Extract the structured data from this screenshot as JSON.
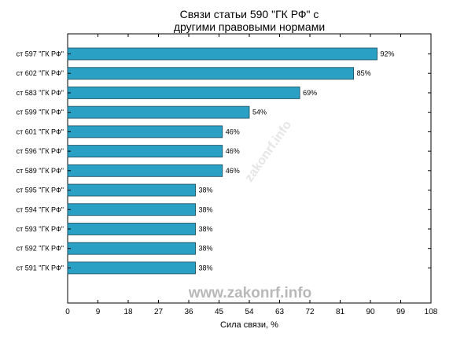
{
  "chart_data": {
    "type": "bar",
    "orientation": "horizontal",
    "title": [
      "Связи статьи 590 \"ГК РФ\" с",
      "другими правовыми нормами"
    ],
    "xlabel": "Сила связи, %",
    "ylabel": "",
    "xlim": [
      0,
      108
    ],
    "xticks": [
      "0",
      "9",
      "18",
      "27",
      "36",
      "45",
      "54",
      "63",
      "72",
      "81",
      "90",
      "99",
      "108"
    ],
    "categories": [
      "ст 597 \"ГК РФ\"",
      "ст 602 \"ГК РФ\"",
      "ст 583 \"ГК РФ\"",
      "ст 599 \"ГК РФ\"",
      "ст 601 \"ГК РФ\"",
      "ст 596 \"ГК РФ\"",
      "ст 589 \"ГК РФ\"",
      "ст 595 \"ГК РФ\"",
      "ст 594 \"ГК РФ\"",
      "ст 593 \"ГК РФ\"",
      "ст 592 \"ГК РФ\"",
      "ст 591 \"ГК РФ\""
    ],
    "values": [
      92,
      85,
      69,
      54,
      46,
      46,
      46,
      38,
      38,
      38,
      38,
      38
    ],
    "value_labels": [
      "92%",
      "85%",
      "69%",
      "54%",
      "46%",
      "46%",
      "46%",
      "38%",
      "38%",
      "38%",
      "38%",
      "38%"
    ],
    "bar_color": "#2aa0c4",
    "bar_edge_color": "#1a4a5c",
    "grid": false
  },
  "watermark": "www.zakonrf.info",
  "watermark_diagonal": "zakonrf.info"
}
